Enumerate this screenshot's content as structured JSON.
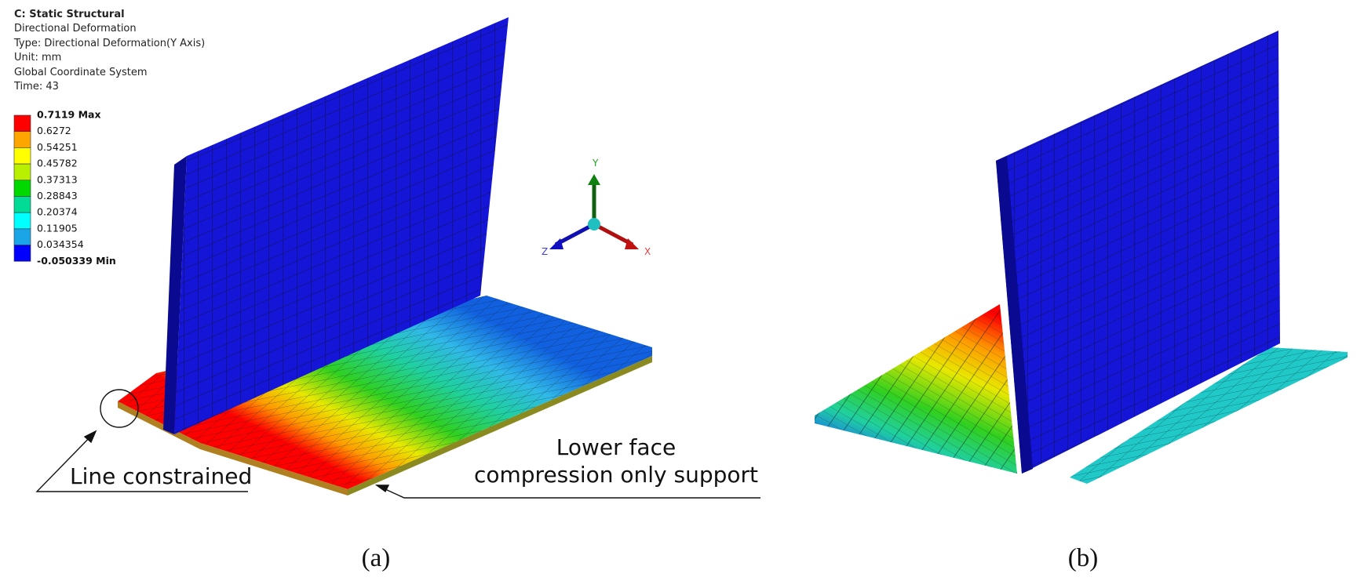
{
  "header": {
    "lines": [
      "C: Static Structural",
      "Directional Deformation",
      "Type: Directional Deformation(Y Axis)",
      "Unit: mm",
      "Global Coordinate System",
      "Time: 43"
    ]
  },
  "legend": {
    "labels": [
      "0.7119 Max",
      "0.6272",
      "0.54251",
      "0.45782",
      "0.37313",
      "0.28843",
      "0.20374",
      "0.11905",
      "0.034354",
      "-0.050339 Min"
    ],
    "colors": [
      "#ff0000",
      "#ffa500",
      "#ffff00",
      "#b8f000",
      "#00d800",
      "#00dc96",
      "#00ffff",
      "#1aa5e6",
      "#0000ff"
    ]
  },
  "triad": {
    "x": "X",
    "y": "Y",
    "z": "Z"
  },
  "annotations": {
    "line_constrained": "Line constrained",
    "lower_face": [
      "Lower face",
      "compression only support"
    ]
  },
  "captions": [
    "(a)",
    "(b)"
  ]
}
